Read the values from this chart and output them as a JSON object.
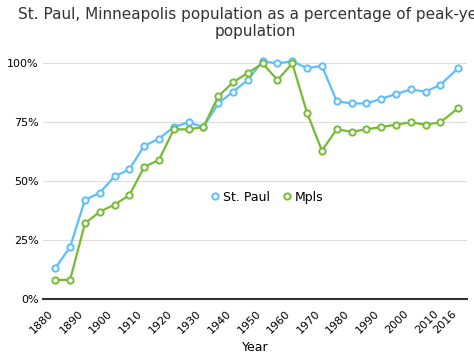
{
  "title": "St. Paul, Minneapolis population as a percentage of peak-year\npopulation",
  "xlabel": "Year",
  "stpaul_years": [
    1880,
    1885,
    1890,
    1895,
    1900,
    1905,
    1910,
    1915,
    1920,
    1925,
    1930,
    1935,
    1940,
    1945,
    1950,
    1955,
    1960,
    1965,
    1970,
    1975,
    1980,
    1985,
    1990,
    1995,
    2000,
    2005,
    2010,
    2016
  ],
  "stpaul_values": [
    13,
    22,
    42,
    45,
    52,
    55,
    65,
    68,
    73,
    75,
    73,
    83,
    88,
    93,
    101,
    100,
    101,
    98,
    99,
    84,
    83,
    83,
    85,
    87,
    89,
    88,
    91,
    98
  ],
  "mpls_years": [
    1880,
    1885,
    1890,
    1895,
    1900,
    1905,
    1910,
    1915,
    1920,
    1925,
    1930,
    1935,
    1940,
    1945,
    1950,
    1955,
    1960,
    1965,
    1970,
    1975,
    1980,
    1985,
    1990,
    1995,
    2000,
    2005,
    2010,
    2016
  ],
  "mpls_values": [
    8,
    8,
    32,
    37,
    40,
    44,
    56,
    59,
    72,
    72,
    73,
    86,
    92,
    96,
    100,
    93,
    100,
    79,
    63,
    72,
    71,
    72,
    73,
    74,
    75,
    74,
    75,
    81
  ],
  "stpaul_color": "#5bbfff",
  "mpls_color": "#77bb33",
  "background_color": "#ffffff",
  "ylim": [
    0,
    108
  ],
  "yticks": [
    0,
    25,
    50,
    75,
    100
  ],
  "xtick_labels": [
    "1880",
    "1890",
    "1900",
    "1910",
    "1920",
    "1930",
    "1940",
    "1950",
    "1960",
    "1970",
    "1980",
    "1990",
    "2000",
    "2010",
    "2016"
  ],
  "xtick_values": [
    1880,
    1890,
    1900,
    1910,
    1920,
    1930,
    1940,
    1950,
    1960,
    1970,
    1980,
    1990,
    2000,
    2010,
    2016
  ],
  "legend_stpaul": "St. Paul",
  "legend_mpls": "Mpls",
  "title_fontsize": 11,
  "axis_fontsize": 9,
  "tick_fontsize": 8
}
